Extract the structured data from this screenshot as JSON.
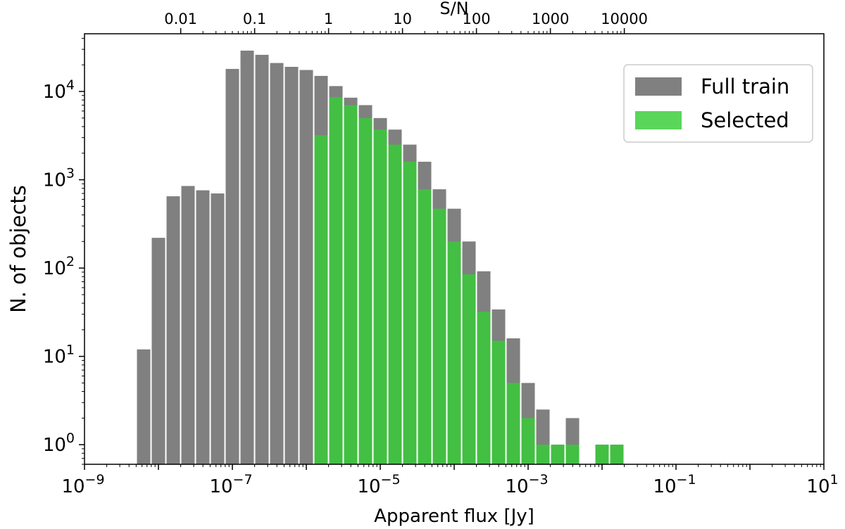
{
  "chart_data": {
    "type": "bar",
    "title": "",
    "xlabel": "Apparent flux [Jy]",
    "ylabel": "N. of objects",
    "top_xlabel": "S/N",
    "xscale": "log",
    "yscale": "log",
    "xlim": [
      1e-09,
      10
    ],
    "ylim": [
      0.6,
      45000
    ],
    "x_ticks": [
      {
        "value": 1e-09,
        "base": "10",
        "exp": "−9"
      },
      {
        "value": 1e-07,
        "base": "10",
        "exp": "−7"
      },
      {
        "value": 1e-05,
        "base": "10",
        "exp": "−5"
      },
      {
        "value": 0.001,
        "base": "10",
        "exp": "−3"
      },
      {
        "value": 0.1,
        "base": "10",
        "exp": "−1"
      },
      {
        "value": 10,
        "base": "10",
        "exp": "1"
      }
    ],
    "y_ticks": [
      {
        "value": 1,
        "base": "10",
        "exp": "0"
      },
      {
        "value": 10,
        "base": "10",
        "exp": "1"
      },
      {
        "value": 100,
        "base": "10",
        "exp": "2"
      },
      {
        "value": 1000,
        "base": "10",
        "exp": "3"
      },
      {
        "value": 10000,
        "base": "10",
        "exp": "4"
      }
    ],
    "top_ticks": [
      {
        "label": "0.01",
        "flux": 2e-08
      },
      {
        "label": "0.1",
        "flux": 2e-07
      },
      {
        "label": "1",
        "flux": 2e-06
      },
      {
        "label": "10",
        "flux": 2e-05
      },
      {
        "label": "100",
        "flux": 0.0002
      },
      {
        "label": "1000",
        "flux": 0.002
      },
      {
        "label": "10000",
        "flux": 0.02
      }
    ],
    "bin_log_edges": [
      -8.3,
      -8.1,
      -7.9,
      -7.7,
      -7.5,
      -7.3,
      -7.1,
      -6.9,
      -6.7,
      -6.5,
      -6.3,
      -6.1,
      -5.9,
      -5.7,
      -5.5,
      -5.3,
      -5.1,
      -4.9,
      -4.7,
      -4.5,
      -4.3,
      -4.1,
      -3.9,
      -3.7,
      -3.5,
      -3.3,
      -3.1,
      -2.9,
      -2.7,
      -2.5,
      -2.3,
      -2.1,
      -1.9,
      -1.7,
      -1.5,
      -1.3
    ],
    "series": [
      {
        "name": "Full train",
        "color": "#808080",
        "values": [
          12,
          220,
          650,
          850,
          760,
          700,
          18000,
          29000,
          26000,
          21000,
          19000,
          17500,
          15000,
          11500,
          8500,
          7000,
          5000,
          3700,
          2500,
          1600,
          780,
          470,
          200,
          92,
          34,
          16,
          5,
          2.5,
          1,
          2,
          0,
          1,
          1,
          0,
          0
        ]
      },
      {
        "name": "Selected",
        "color": "#43bf43",
        "values": [
          0,
          0,
          0,
          0,
          0,
          0,
          0,
          0,
          0,
          0,
          0,
          0,
          3200,
          8600,
          7000,
          5000,
          3700,
          2500,
          1600,
          780,
          470,
          200,
          85,
          32,
          15,
          5,
          2,
          1,
          1,
          1,
          0,
          1,
          1,
          0,
          0
        ]
      }
    ],
    "legend": {
      "position": "top-right",
      "entries": [
        "Full train",
        "Selected"
      ],
      "colors": [
        "#808080",
        "#5ad65a"
      ]
    },
    "grid": false
  }
}
